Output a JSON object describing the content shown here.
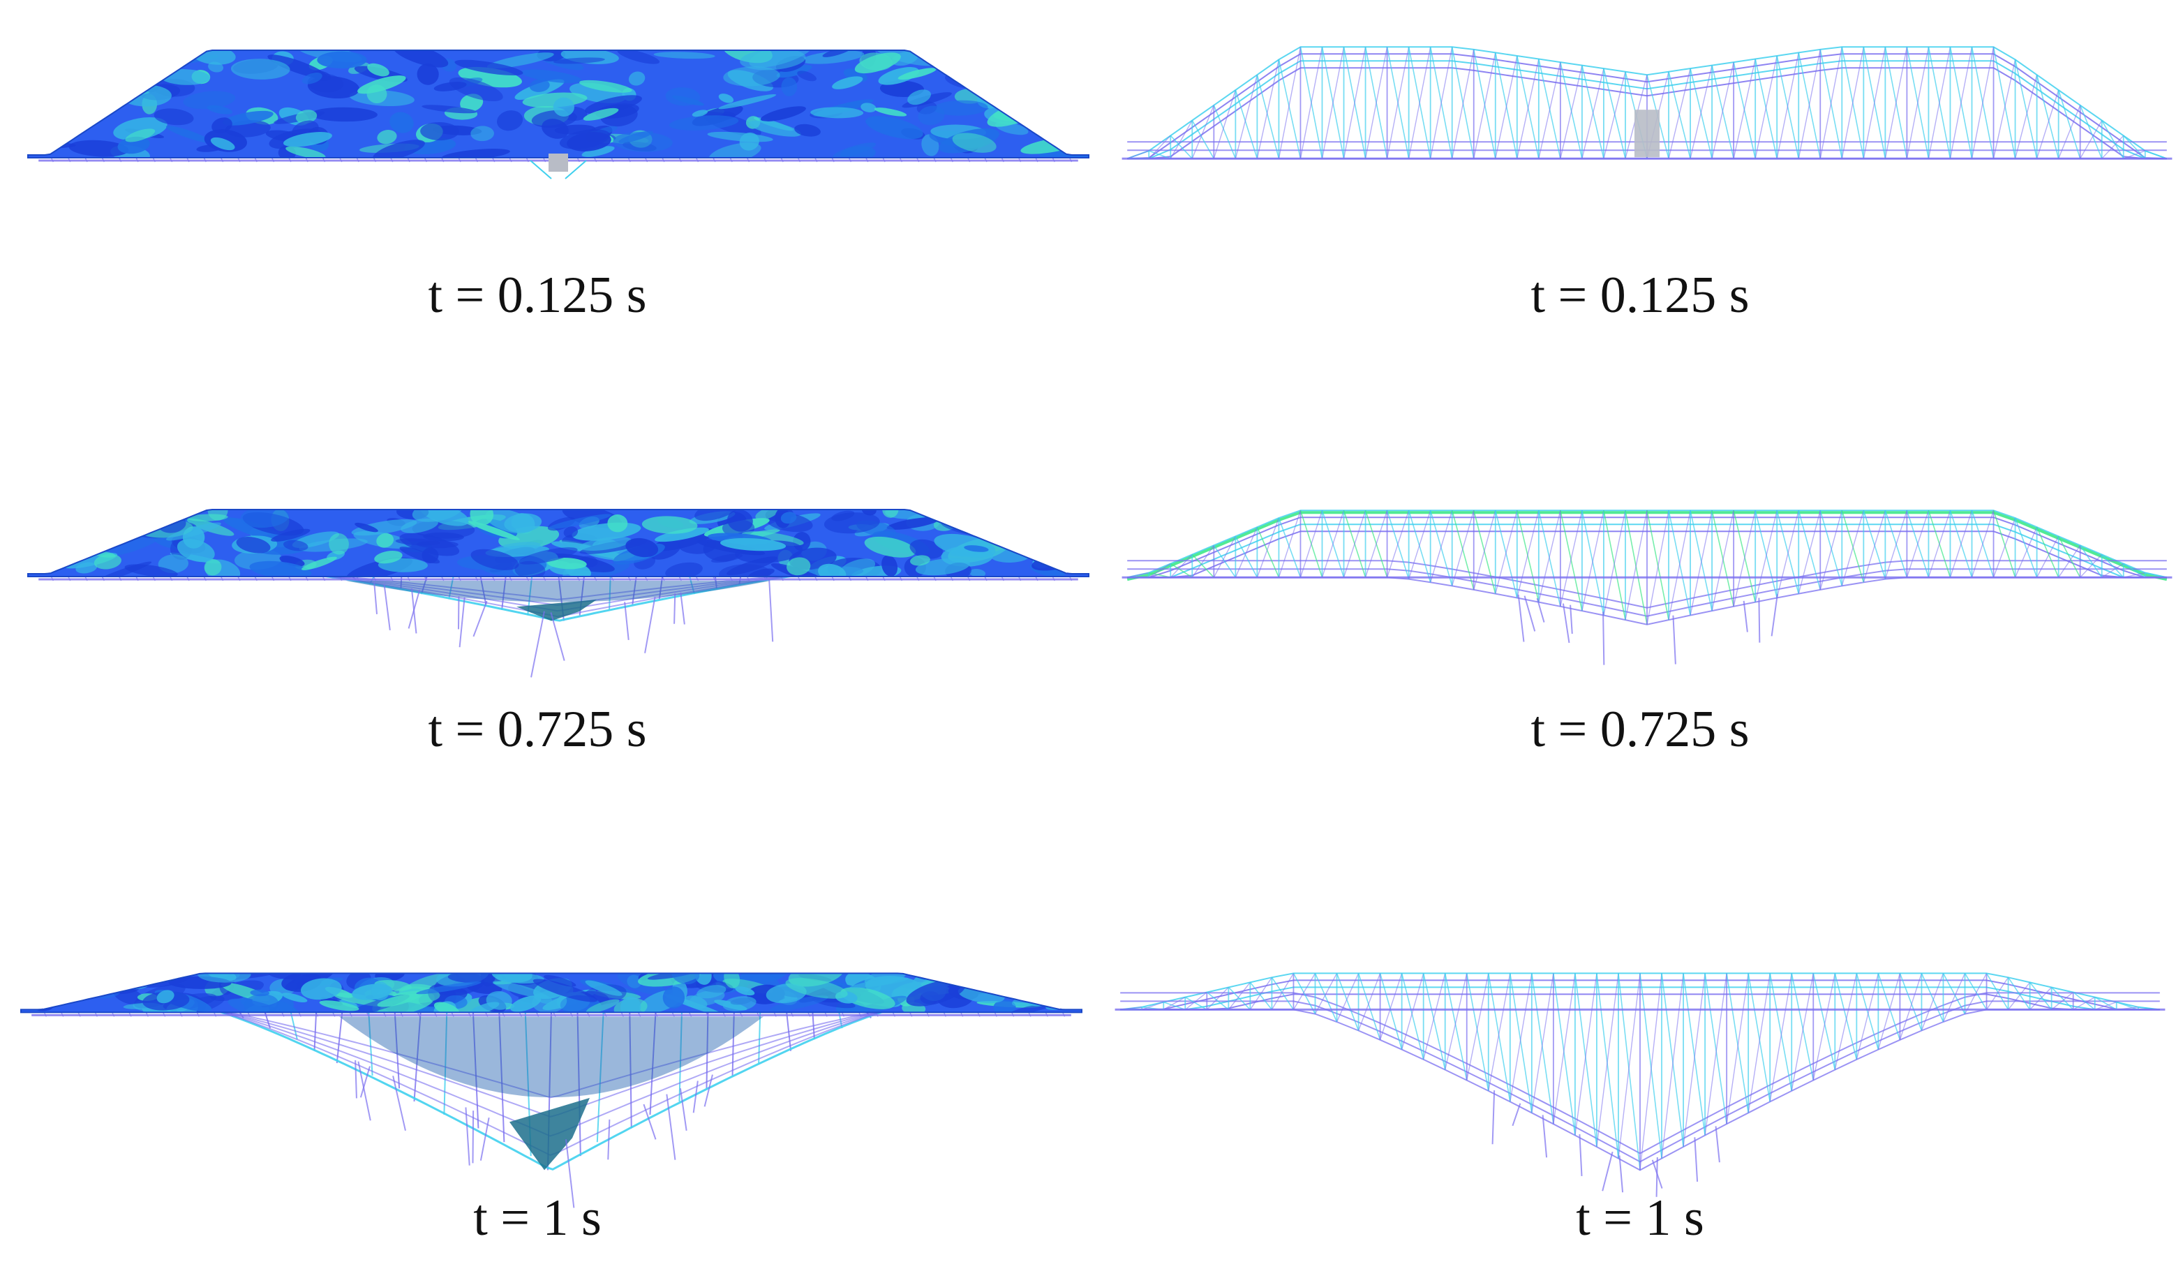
{
  "figure": {
    "colors": {
      "shell_dark": "#1a3fd9",
      "shell_mid": "#2d5ff0",
      "shell_light": "#35b6e6",
      "shell_highlight": "#43e0c8",
      "frame_purple": "#7a6ff0",
      "frame_cyan": "#3fd0ee",
      "frame_green": "#3ee88a",
      "column_grey": "#b8bcc6"
    },
    "panels": [
      {
        "view": "shell",
        "deformation": 0.0,
        "caption": "t = 0.125 s"
      },
      {
        "view": "frame",
        "deformation": 0.0,
        "caption": "t = 0.125 s"
      },
      {
        "view": "shell",
        "deformation": 0.45,
        "caption": "t = 0.725 s"
      },
      {
        "view": "frame",
        "deformation": 0.45,
        "caption": "t = 0.725 s"
      },
      {
        "view": "shell",
        "deformation": 1.0,
        "caption": "t = 1 s"
      },
      {
        "view": "frame",
        "deformation": 1.0,
        "caption": "t = 1 s"
      }
    ]
  }
}
